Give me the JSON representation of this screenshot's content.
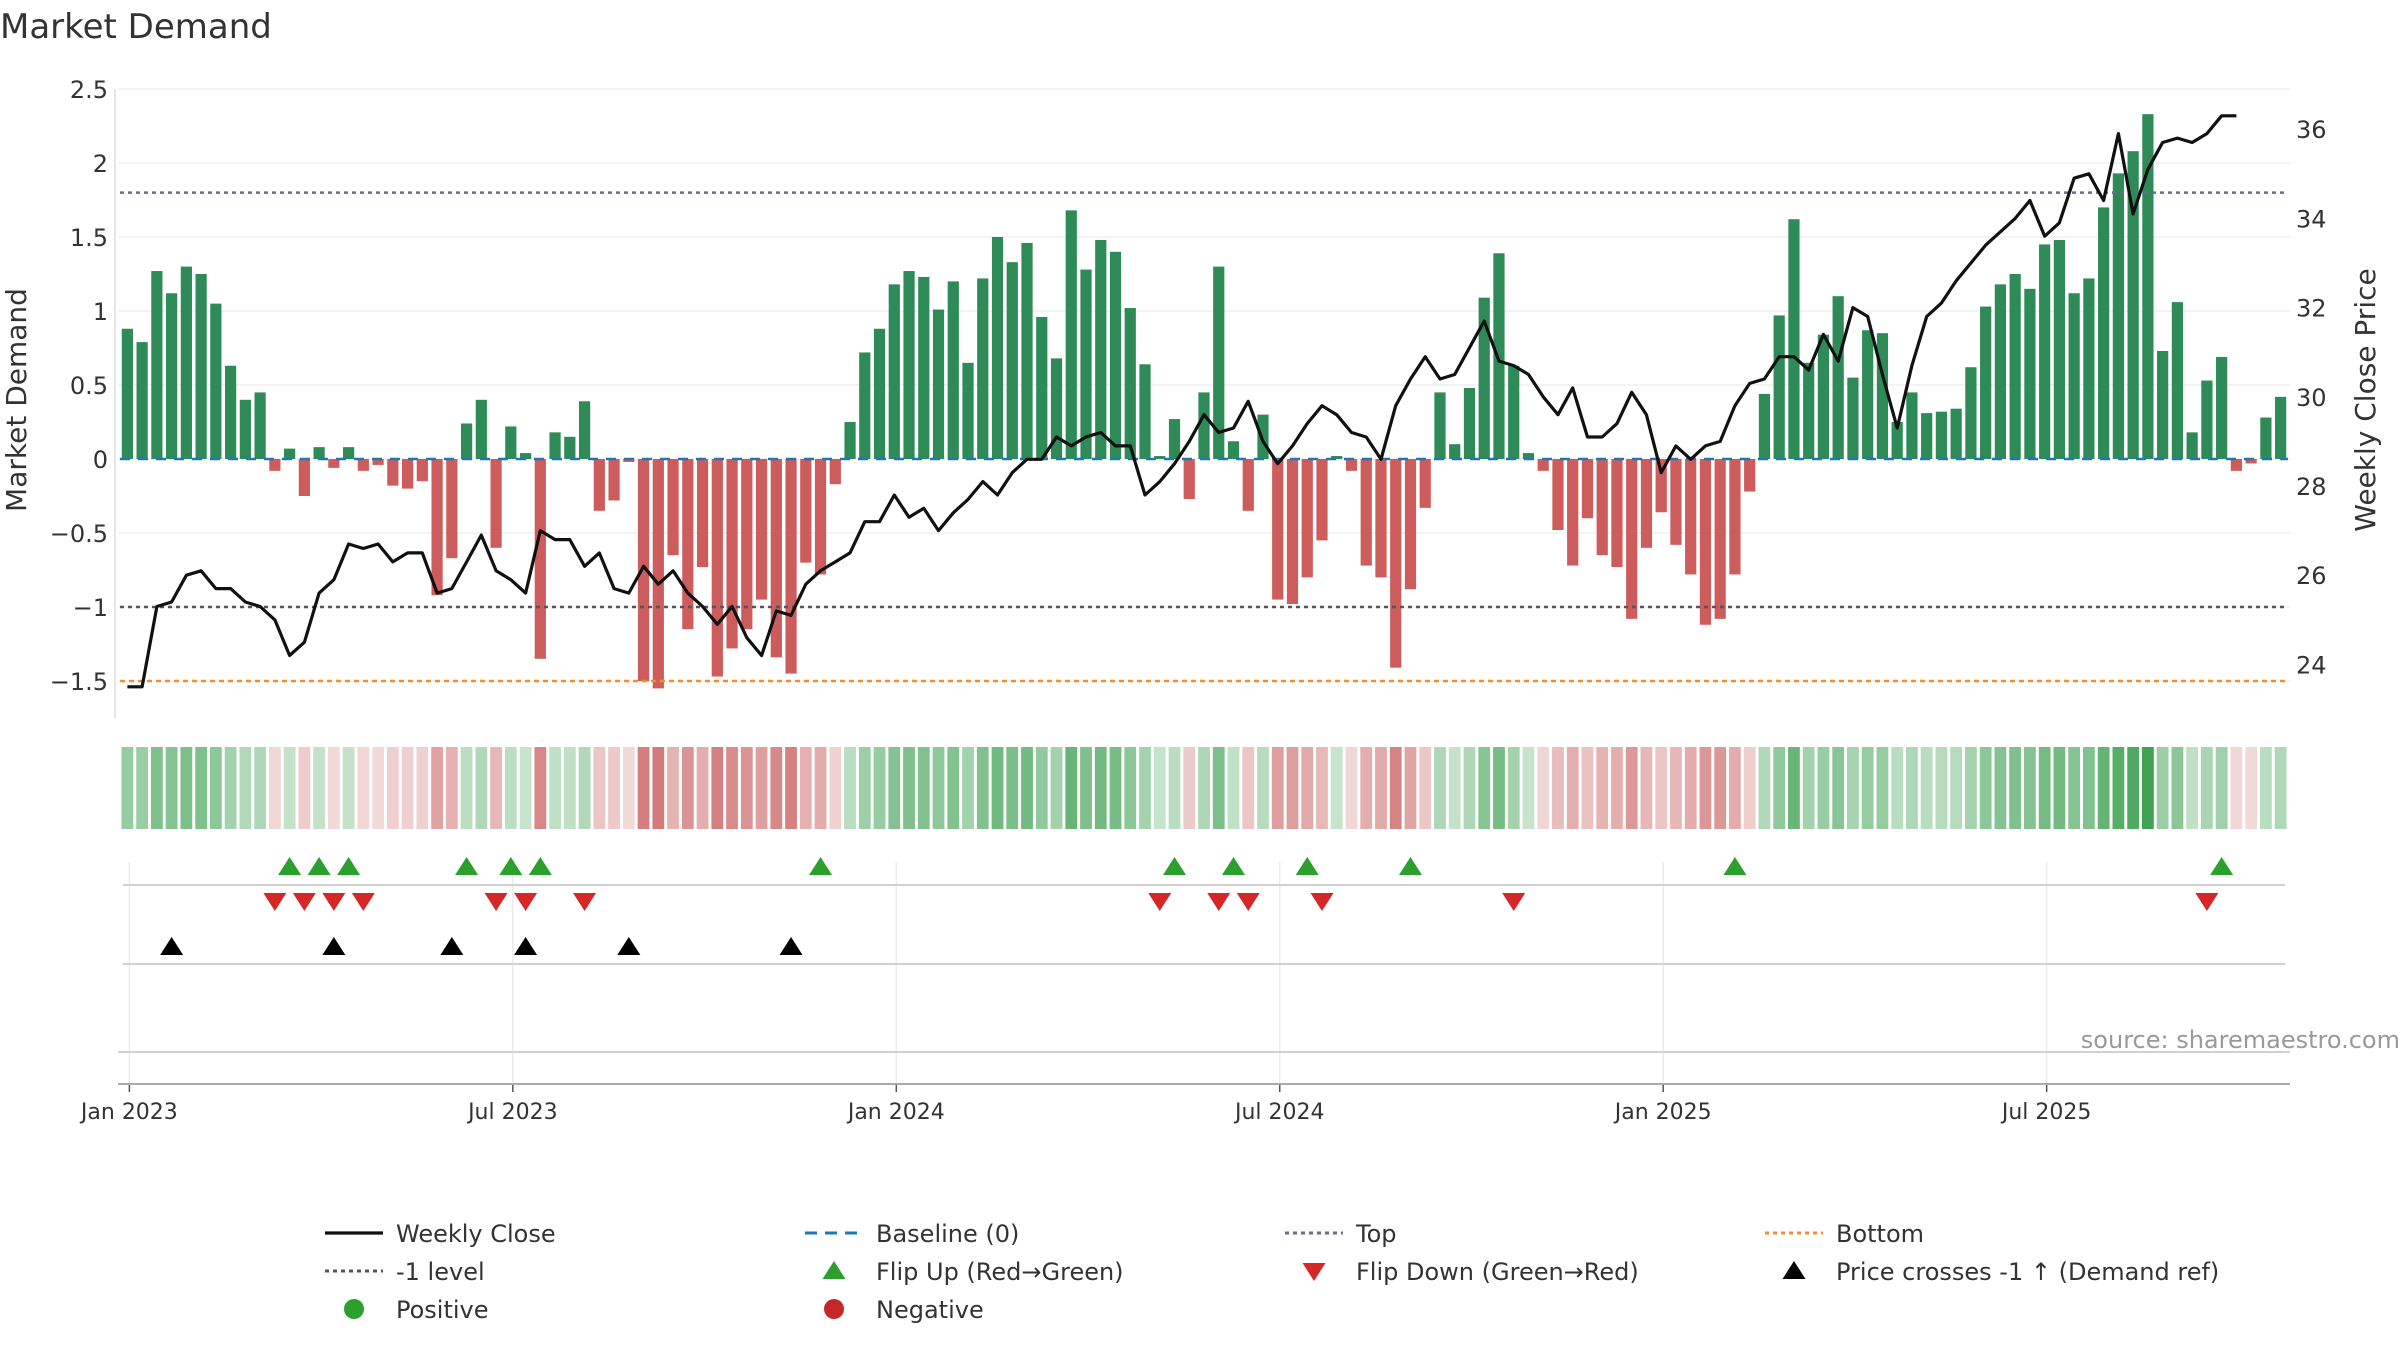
{
  "chart_data": {
    "type": "bar+line",
    "title": "Market Demand",
    "ylabel_left": "Market Demand",
    "ylabel_right": "Weekly Close Price",
    "source": "source: sharemaestro.com",
    "left_ylim": [
      -1.75,
      2.5
    ],
    "right_ylim": [
      22.8,
      36.9
    ],
    "left_ticks": [
      "2.5",
      "2",
      "1.5",
      "1",
      "0.5",
      "0",
      "−0.5",
      "−1",
      "−1.5"
    ],
    "right_ticks": [
      "36",
      "34",
      "32",
      "30",
      "28",
      "26",
      "24"
    ],
    "x_ticks": [
      "Jan 2023",
      "Jul 2023",
      "Jan 2024",
      "Jul 2024",
      "Jan 2025",
      "Jul 2025"
    ],
    "levels": {
      "top": 1.8,
      "minus_one": -1.0,
      "bottom": -1.5,
      "baseline": 0
    },
    "colors": {
      "positive_bar": "#2e8b57",
      "negative_bar": "#cd5c5c",
      "price_line": "#111111",
      "top_line": "#6b6b8f",
      "minus_one_line": "#555555",
      "bottom_line": "#f28e2b",
      "baseline": "#1f77b4",
      "flip_up": "#2ca02c",
      "flip_down": "#d62728",
      "cross": "#000000",
      "positive_dot": "#2ca02c",
      "negative_dot": "#c62828"
    },
    "demand": [
      0.88,
      0.79,
      1.27,
      1.12,
      1.3,
      1.25,
      1.05,
      0.63,
      0.4,
      0.45,
      -0.08,
      0.07,
      -0.25,
      0.08,
      -0.06,
      0.08,
      -0.08,
      -0.04,
      -0.18,
      -0.2,
      -0.15,
      -0.92,
      -0.67,
      0.24,
      0.4,
      -0.6,
      0.22,
      0.04,
      -1.35,
      0.18,
      0.15,
      0.39,
      -0.35,
      -0.28,
      -0.02,
      -1.5,
      -1.55,
      -0.65,
      -1.15,
      -0.73,
      -1.47,
      -1.28,
      -1.15,
      -0.95,
      -1.34,
      -1.45,
      -0.7,
      -0.78,
      -0.17,
      0.25,
      0.72,
      0.88,
      1.18,
      1.27,
      1.23,
      1.01,
      1.2,
      0.65,
      1.22,
      1.5,
      1.33,
      1.46,
      0.96,
      0.68,
      1.68,
      1.28,
      1.48,
      1.4,
      1.02,
      0.64,
      0.02,
      0.27,
      -0.27,
      0.45,
      1.3,
      0.12,
      -0.35,
      0.3,
      -0.95,
      -0.98,
      -0.8,
      -0.55,
      0.02,
      -0.08,
      -0.72,
      -0.8,
      -1.41,
      -0.88,
      -0.33,
      0.45,
      0.1,
      0.48,
      1.09,
      1.39,
      0.63,
      0.04,
      -0.08,
      -0.48,
      -0.72,
      -0.4,
      -0.65,
      -0.73,
      -1.08,
      -0.6,
      -0.36,
      -0.58,
      -0.78,
      -1.12,
      -1.08,
      -0.78,
      -0.22,
      0.44,
      0.97,
      1.62,
      0.65,
      0.84,
      1.1,
      0.55,
      0.87,
      0.85,
      0.25,
      0.45,
      0.31,
      0.32,
      0.34,
      0.62,
      1.03,
      1.18,
      1.25,
      1.15,
      1.45,
      1.48,
      1.12,
      1.22,
      1.7,
      1.93,
      2.08,
      2.33,
      0.73,
      1.06,
      0.18,
      0.53,
      0.69,
      -0.08,
      -0.03,
      0.28,
      0.42
    ],
    "price": [
      23.5,
      23.5,
      25.3,
      25.4,
      26.0,
      26.1,
      25.7,
      25.7,
      25.4,
      25.3,
      25.0,
      24.2,
      24.5,
      25.6,
      25.9,
      26.7,
      26.6,
      26.7,
      26.3,
      26.5,
      26.5,
      25.6,
      25.7,
      26.3,
      26.9,
      26.1,
      25.9,
      25.6,
      27.0,
      26.8,
      26.8,
      26.2,
      26.5,
      25.7,
      25.6,
      26.2,
      25.8,
      26.1,
      25.6,
      25.3,
      24.9,
      25.3,
      24.6,
      24.2,
      25.2,
      25.1,
      25.8,
      26.1,
      26.3,
      26.5,
      27.2,
      27.2,
      27.8,
      27.3,
      27.5,
      27.0,
      27.4,
      27.7,
      28.1,
      27.8,
      28.3,
      28.6,
      28.6,
      29.1,
      28.9,
      29.1,
      29.2,
      28.9,
      28.9,
      27.8,
      28.1,
      28.5,
      29.0,
      29.6,
      29.2,
      29.3,
      29.9,
      29.0,
      28.5,
      28.9,
      29.4,
      29.8,
      29.6,
      29.2,
      29.1,
      28.6,
      29.8,
      30.4,
      30.9,
      30.4,
      30.5,
      31.1,
      31.7,
      30.8,
      30.7,
      30.5,
      30.0,
      29.6,
      30.2,
      29.1,
      29.1,
      29.4,
      30.1,
      29.6,
      28.3,
      28.9,
      28.6,
      28.9,
      29.0,
      29.8,
      30.3,
      30.4,
      30.9,
      30.9,
      30.6,
      31.4,
      30.8,
      32.0,
      31.8,
      30.5,
      29.3,
      30.7,
      31.8,
      32.1,
      32.6,
      33.0,
      33.4,
      33.7,
      34.0,
      34.4,
      33.6,
      33.9,
      34.9,
      35.0,
      34.4,
      35.9,
      34.1,
      35.1,
      35.7,
      35.8,
      35.7,
      35.9,
      36.3,
      36.3
    ],
    "flip_up_idx": [
      11,
      13,
      15,
      23,
      26,
      28,
      47,
      71,
      75,
      80,
      87,
      109,
      142
    ],
    "flip_down_idx": [
      10,
      12,
      14,
      16,
      25,
      27,
      31,
      70,
      74,
      76,
      81,
      94,
      141
    ],
    "cross_idx": [
      3,
      14,
      22,
      27,
      34,
      45
    ],
    "legend": [
      {
        "label": "Weekly Close",
        "kind": "line",
        "color": "#111111"
      },
      {
        "label": "Baseline (0)",
        "kind": "dash",
        "color": "#1f77b4"
      },
      {
        "label": "Top",
        "kind": "dot",
        "color": "#6b6b8f"
      },
      {
        "label": "Bottom",
        "kind": "dot",
        "color": "#f28e2b"
      },
      {
        "label": "-1 level",
        "kind": "dot",
        "color": "#555555"
      },
      {
        "label": "Flip Up (Red→Green)",
        "kind": "tri-up",
        "color": "#2ca02c"
      },
      {
        "label": "Flip Down (Green→Red)",
        "kind": "tri-down",
        "color": "#d62728"
      },
      {
        "label": "Price crosses -1 ↑ (Demand ref)",
        "kind": "tri-up",
        "color": "#000000"
      },
      {
        "label": "Positive",
        "kind": "circle",
        "color": "#2ca02c"
      },
      {
        "label": "Negative",
        "kind": "circle",
        "color": "#c62828"
      }
    ]
  }
}
